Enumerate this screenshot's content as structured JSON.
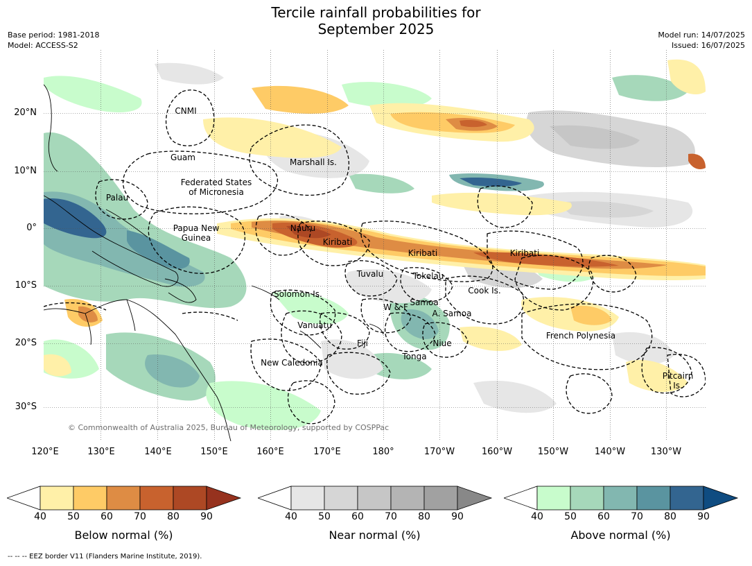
{
  "title_line1": "Tercile rainfall probabilities for",
  "title_line2": "September 2025",
  "base_period": "Base period: 1981-2018",
  "model": "Model: ACCESS-S2",
  "model_run": "Model run: 14/07/2025",
  "issued": "Issued: 16/07/2025",
  "lat_labels": [
    "20°N",
    "10°N",
    "0°",
    "10°S",
    "20°S",
    "30°S"
  ],
  "lon_labels": [
    "120°E",
    "130°E",
    "140°E",
    "150°E",
    "160°E",
    "170°E",
    "180°",
    "170°W",
    "160°W",
    "150°W",
    "140°W",
    "130°W"
  ],
  "regions": {
    "cnmi": "CNMI",
    "guam": "Guam",
    "marshall": "Marshall Is.",
    "fsm1": "Federated States",
    "fsm2": "of Micronesia",
    "palau": "Palau",
    "png1": "Papua New",
    "png2": "Guinea",
    "nauru": "Nauru",
    "kiribati": "Kiribati",
    "tuvalu": "Tuvalu",
    "tokelau": "Tokelau",
    "cook": "Cook Is.",
    "solomon": "Solomon Is.",
    "wf": "W & F",
    "samoa": "Samoa",
    "asamoa": "A. Samoa",
    "vanuatu": "Vanuatu",
    "fiji": "Fiji",
    "niue": "Niue",
    "tonga": "Tonga",
    "newcal": "New Caledonia",
    "frpoly": "French Polynesia",
    "pitcairn1": "Pitcairn",
    "pitcairn2": "Is."
  },
  "copyright": "© Commonwealth of Australia 2025, Bureau of Meteorology, supported by COSPPac",
  "colorbars": [
    {
      "label": "Below normal (%)",
      "ticks": [
        "40",
        "50",
        "60",
        "70",
        "80",
        "90"
      ],
      "colors": [
        "#fff0a8",
        "#fecb66",
        "#de8c44",
        "#c8622e",
        "#ad4824",
        "#96321e"
      ]
    },
    {
      "label": "Near normal (%)",
      "ticks": [
        "40",
        "50",
        "60",
        "70",
        "80",
        "90"
      ],
      "colors": [
        "#e6e6e6",
        "#d6d6d6",
        "#c6c6c6",
        "#b4b4b4",
        "#a1a1a1",
        "#888888"
      ]
    },
    {
      "label": "Above normal (%)",
      "ticks": [
        "40",
        "50",
        "60",
        "70",
        "80",
        "90"
      ],
      "colors": [
        "#c8fccc",
        "#a6d8ba",
        "#82b7b0",
        "#5a94a0",
        "#336590",
        "#0f4c81"
      ]
    }
  ],
  "footer": "-- -- -- EEZ border V11 (Flanders Marine Institute, 2019)."
}
